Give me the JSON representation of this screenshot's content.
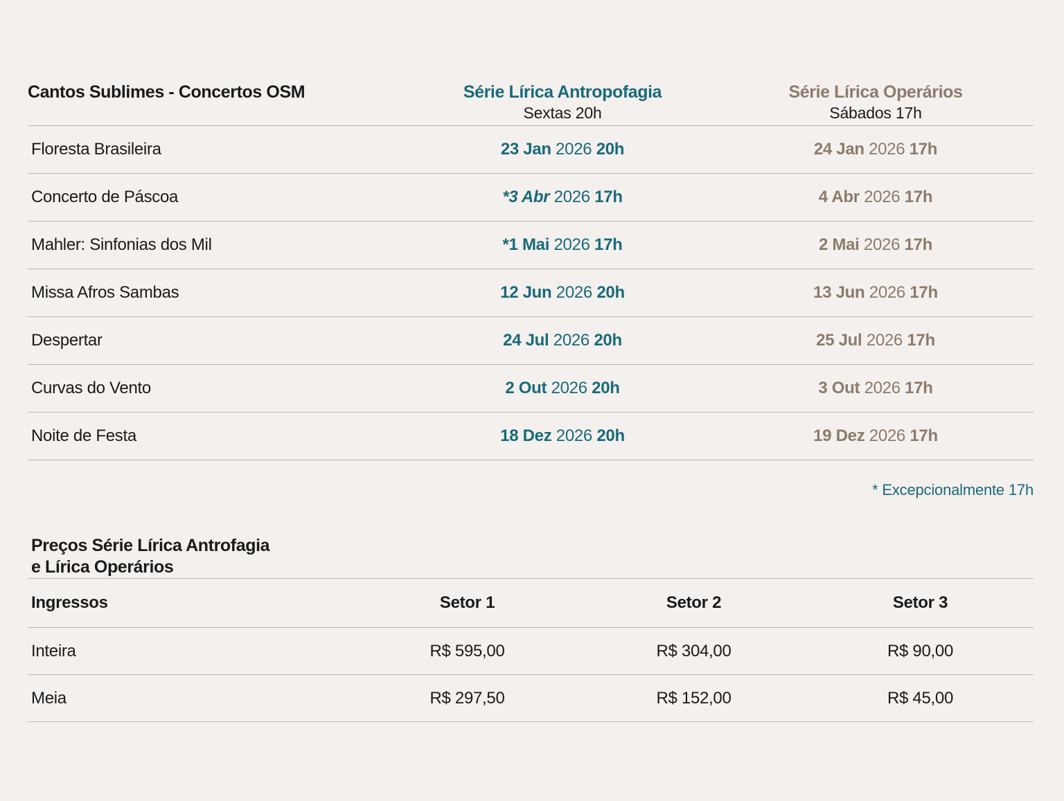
{
  "colors": {
    "background": "#f4f0ed",
    "teal": "#196a7b",
    "brown": "#8b7b6c",
    "text": "#1a1a1a",
    "divider": "#bcb8b4"
  },
  "schedule": {
    "title": "Cantos Sublimes - Concertos OSM",
    "columns": [
      {
        "name": "Série Lírica Antropofagia",
        "schedule": "Sextas 20h",
        "color": "#196a7b"
      },
      {
        "name": "Série Lírica Operários",
        "schedule": "Sábados 17h",
        "color": "#8b7b6c"
      }
    ],
    "rows": [
      {
        "name": "Floresta Brasileira",
        "lirica": {
          "day": "23 Jan",
          "year": "2026",
          "time": "20h"
        },
        "operarios": {
          "day": "24 Jan",
          "year": "2026",
          "time": "17h"
        }
      },
      {
        "name": "Concerto de Páscoa",
        "lirica": {
          "day": "*3 Abr",
          "year": "2026",
          "time": "17h"
        },
        "operarios": {
          "day": "4 Abr",
          "year": "2026",
          "time": "17h"
        }
      },
      {
        "name": "Mahler: Sinfonias dos Mil",
        "lirica": {
          "day": "*1 Mai",
          "year": "2026",
          "time": "17h"
        },
        "operarios": {
          "day": "2 Mai",
          "year": "2026",
          "time": "17h"
        }
      },
      {
        "name": "Missa Afros Sambas",
        "lirica": {
          "day": "12 Jun",
          "year": "2026",
          "time": "20h"
        },
        "operarios": {
          "day": "13 Jun",
          "year": "2026",
          "time": "17h"
        }
      },
      {
        "name": "Despertar",
        "lirica": {
          "day": "24 Jul",
          "year": "2026",
          "time": "20h"
        },
        "operarios": {
          "day": "25 Jul",
          "year": "2026",
          "time": "17h"
        }
      },
      {
        "name": "Curvas do Vento",
        "lirica": {
          "day": "2 Out",
          "year": "2026",
          "time": "20h"
        },
        "operarios": {
          "day": "3 Out",
          "year": "2026",
          "time": "17h"
        }
      },
      {
        "name": "Noite de Festa",
        "lirica": {
          "day": "18 Dez",
          "year": "2026",
          "time": "20h"
        },
        "operarios": {
          "day": "19 Dez",
          "year": "2026",
          "time": "17h"
        }
      }
    ],
    "footnote": "* Excepcionalmente 17h"
  },
  "prices": {
    "title_line1": "Preços Série Lírica Antrofagia",
    "title_line2": "e Lírica Operários",
    "headers": [
      "Ingressos",
      "Setor 1",
      "Setor 2",
      "Setor 3"
    ],
    "rows": [
      {
        "label": "Inteira",
        "values": [
          "R$ 595,00",
          "R$ 304,00",
          "R$ 90,00"
        ]
      },
      {
        "label": "Meia",
        "values": [
          "R$ 297,50",
          "R$ 152,00",
          "R$ 45,00"
        ]
      }
    ]
  }
}
